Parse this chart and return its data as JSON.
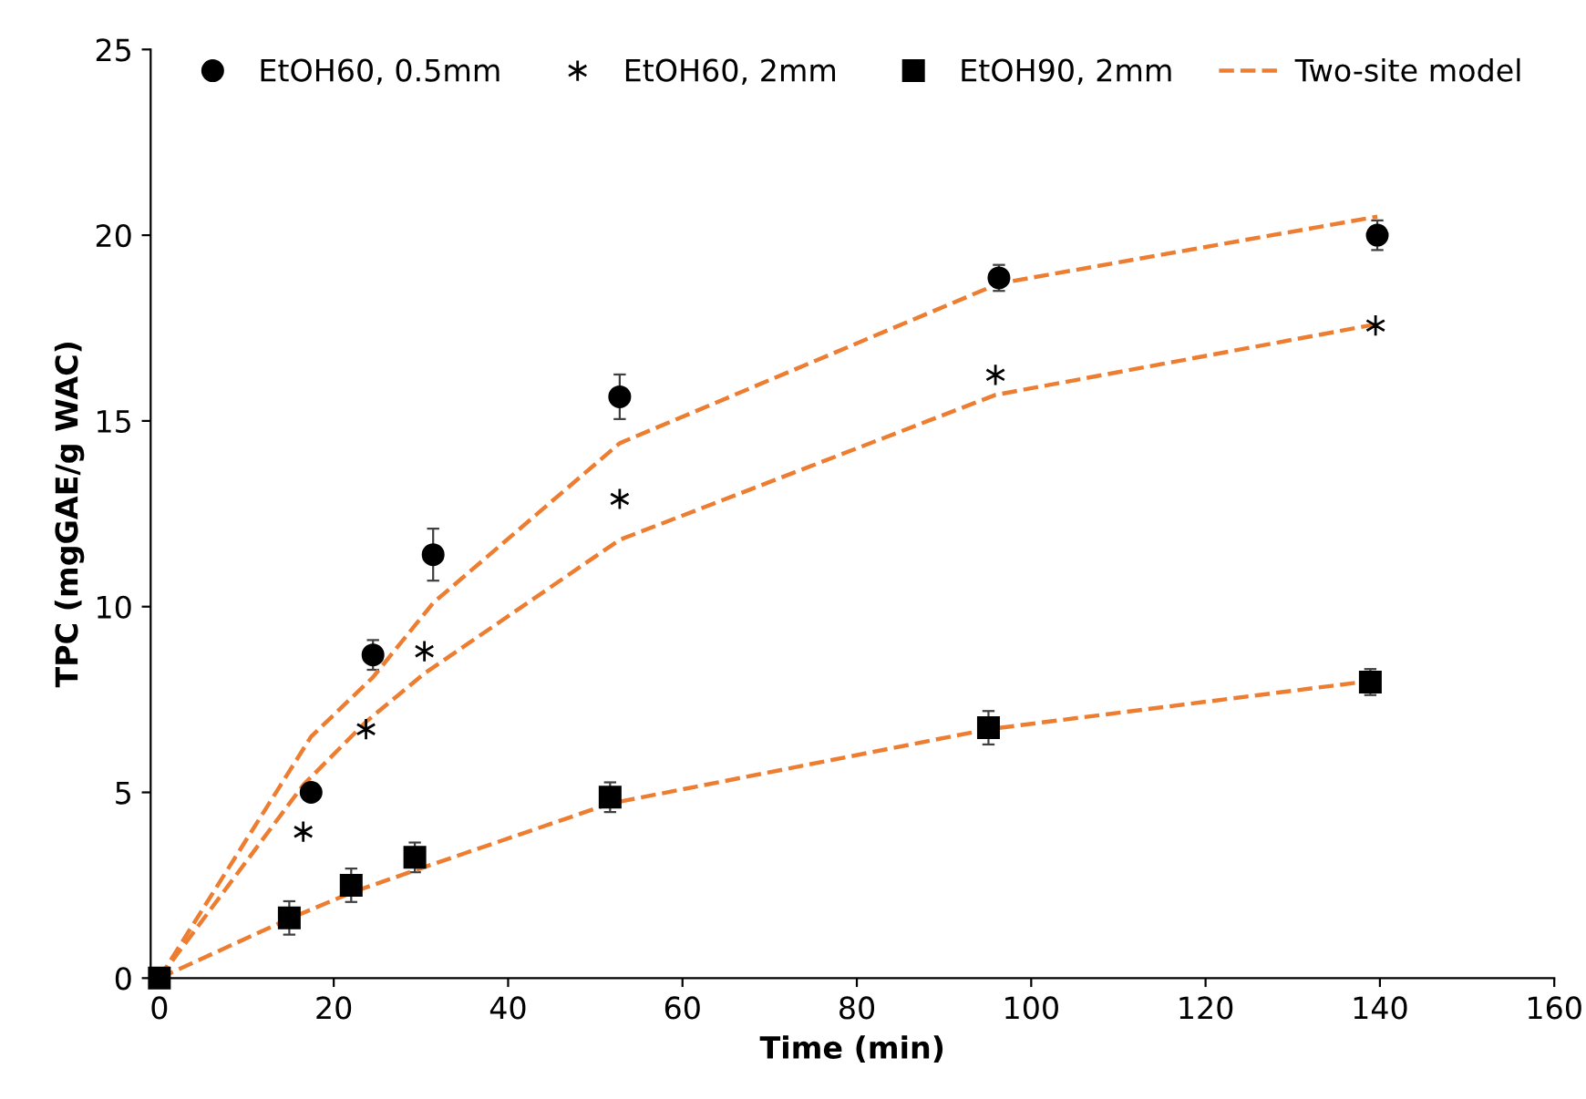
{
  "chart_data": {
    "type": "scatter",
    "xlabel": "Time (min)",
    "ylabel": "TPC (mgGAE/g WAC)",
    "xlim": [
      -1,
      160
    ],
    "xticks": [
      0,
      20,
      40,
      60,
      80,
      100,
      120,
      140,
      160
    ],
    "ylim": [
      0,
      25
    ],
    "yticks": [
      0,
      5,
      10,
      15,
      20,
      25
    ],
    "grid": false,
    "legend": "top",
    "series": [
      {
        "name": "EtOH60, 0.5mm",
        "marker": "circle",
        "color": "#000000",
        "x": [
          17.4,
          24.5,
          31.4,
          52.8,
          96.3,
          139.7
        ],
        "values": [
          5.0,
          8.7,
          11.4,
          15.65,
          18.85,
          20.0
        ],
        "errors": [
          0.2,
          0.4,
          0.7,
          0.6,
          0.35,
          0.4
        ]
      },
      {
        "name": "EtOH60, 2mm",
        "marker": "cross",
        "color": "#000000",
        "x": [
          16.5,
          23.7,
          30.4,
          52.8,
          95.9,
          139.5
        ],
        "values": [
          3.94,
          6.7,
          8.8,
          12.9,
          16.24,
          17.57
        ]
      },
      {
        "name": "EtOH90, 2mm",
        "marker": "square",
        "color": "#000000",
        "x": [
          0,
          14.9,
          22.0,
          29.3,
          51.7,
          95.1,
          138.9
        ],
        "values": [
          0,
          1.62,
          2.5,
          3.25,
          4.87,
          6.74,
          7.97
        ],
        "errors": [
          null,
          0.45,
          0.45,
          0.4,
          0.4,
          0.45,
          0.35
        ]
      },
      {
        "name": "Two-site model",
        "type": "line",
        "line_style": "dashed",
        "marker": "none",
        "color": "#ed7d31",
        "x": [
          0,
          17.4,
          24.5,
          31.4,
          52.8,
          96.3,
          139.7
        ],
        "values": [
          0,
          6.5,
          8.1,
          10.1,
          14.4,
          18.7,
          20.5
        ]
      },
      {
        "type": "line",
        "line_style": "dashed",
        "marker": "none",
        "color": "#ed7d31",
        "x": [
          0,
          16.5,
          23.7,
          30.4,
          52.8,
          95.9,
          139.5
        ],
        "values": [
          0,
          5.2,
          6.9,
          8.2,
          11.8,
          15.7,
          17.6
        ]
      },
      {
        "type": "line",
        "line_style": "dashed",
        "marker": "none",
        "color": "#ed7d31",
        "x": [
          0,
          14.9,
          22.0,
          29.3,
          51.7,
          95.1,
          138.9
        ],
        "values": [
          0,
          1.6,
          2.3,
          2.9,
          4.7,
          6.7,
          8.0
        ]
      }
    ]
  }
}
